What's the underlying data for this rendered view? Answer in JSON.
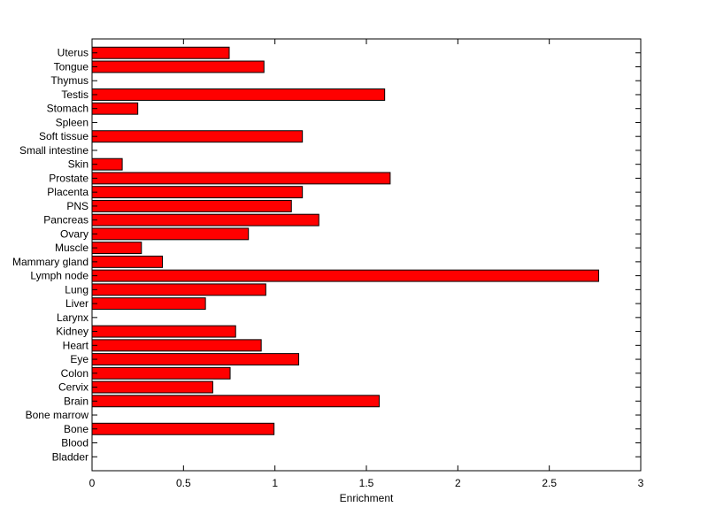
{
  "chart_data": {
    "type": "bar",
    "orientation": "horizontal",
    "title": "",
    "xlabel": "Enrichment",
    "ylabel": "",
    "xlim": [
      0,
      3
    ],
    "xticks": [
      "0",
      "0.5",
      "1",
      "1.5",
      "2",
      "2.5",
      "3"
    ],
    "grid": false,
    "bar_color": "#ff0000",
    "categories": [
      "Uterus",
      "Tongue",
      "Thymus",
      "Testis",
      "Stomach",
      "Spleen",
      "Soft tissue",
      "Small intestine",
      "Skin",
      "Prostate",
      "Placenta",
      "PNS",
      "Pancreas",
      "Ovary",
      "Muscle",
      "Mammary gland",
      "Lymph node",
      "Lung",
      "Liver",
      "Larynx",
      "Kidney",
      "Heart",
      "Eye",
      "Colon",
      "Cervix",
      "Brain",
      "Bone marrow",
      "Bone",
      "Blood",
      "Bladder"
    ],
    "values": [
      0.75,
      0.94,
      0,
      1.6,
      0.25,
      0,
      1.15,
      0,
      0.165,
      1.63,
      1.15,
      1.09,
      1.24,
      0.855,
      0.27,
      0.385,
      2.77,
      0.95,
      0.62,
      0,
      0.785,
      0.925,
      1.13,
      0.755,
      0.66,
      1.57,
      0,
      0.995,
      0,
      0
    ]
  }
}
